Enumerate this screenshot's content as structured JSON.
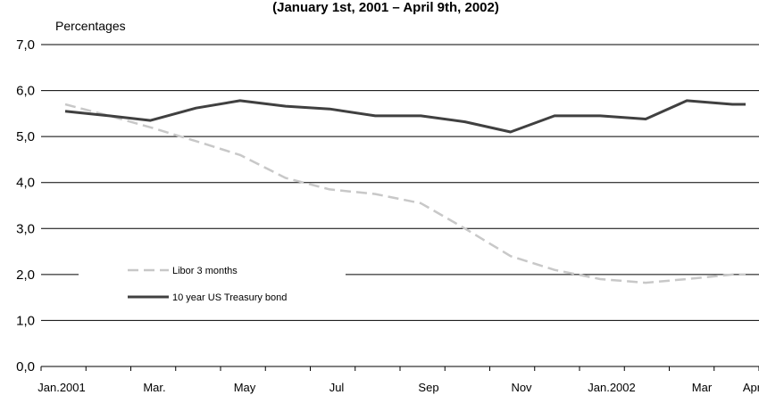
{
  "chart_data": {
    "type": "line",
    "title": "(January 1st, 2001 – April 9th, 2002)",
    "ylabel": "Percentages",
    "xlabel": "",
    "ylim": [
      0,
      7
    ],
    "yticks": [
      "0,0",
      "1,0",
      "2,0",
      "3,0",
      "4,0",
      "5,0",
      "6,0",
      "7,0"
    ],
    "x_tick_labels": [
      "Jan.2001",
      "Mar.",
      "May",
      "Jul",
      "Sep",
      "Nov",
      "Jan.2002",
      "Mar",
      "Apr"
    ],
    "grid": "horizontal",
    "legend_position": "left",
    "series": [
      {
        "name": "Libor 3 months",
        "color": "#c8c8c8",
        "style": "dashed",
        "points": [
          {
            "x": "2001-01-01",
            "y": 5.7
          },
          {
            "x": "2001-01-31",
            "y": 5.45
          },
          {
            "x": "2001-02-28",
            "y": 5.2
          },
          {
            "x": "2001-03-31",
            "y": 4.9
          },
          {
            "x": "2001-04-30",
            "y": 4.6
          },
          {
            "x": "2001-05-31",
            "y": 4.1
          },
          {
            "x": "2001-06-30",
            "y": 3.85
          },
          {
            "x": "2001-07-31",
            "y": 3.75
          },
          {
            "x": "2001-08-31",
            "y": 3.55
          },
          {
            "x": "2001-09-30",
            "y": 3.0
          },
          {
            "x": "2001-10-31",
            "y": 2.4
          },
          {
            "x": "2001-11-30",
            "y": 2.1
          },
          {
            "x": "2001-12-31",
            "y": 1.9
          },
          {
            "x": "2002-01-31",
            "y": 1.82
          },
          {
            "x": "2002-02-28",
            "y": 1.9
          },
          {
            "x": "2002-03-31",
            "y": 2.0
          },
          {
            "x": "2002-04-09",
            "y": 2.0
          }
        ]
      },
      {
        "name": "10 year US Treasury bond",
        "color": "#404040",
        "style": "solid",
        "points": [
          {
            "x": "2001-01-01",
            "y": 5.55
          },
          {
            "x": "2001-01-31",
            "y": 5.45
          },
          {
            "x": "2001-02-28",
            "y": 5.35
          },
          {
            "x": "2001-03-31",
            "y": 5.62
          },
          {
            "x": "2001-04-30",
            "y": 5.78
          },
          {
            "x": "2001-05-31",
            "y": 5.66
          },
          {
            "x": "2001-06-30",
            "y": 5.6
          },
          {
            "x": "2001-07-31",
            "y": 5.45
          },
          {
            "x": "2001-08-31",
            "y": 5.45
          },
          {
            "x": "2001-09-30",
            "y": 5.32
          },
          {
            "x": "2001-10-31",
            "y": 5.1
          },
          {
            "x": "2001-11-30",
            "y": 5.45
          },
          {
            "x": "2001-12-31",
            "y": 5.45
          },
          {
            "x": "2002-01-31",
            "y": 5.38
          },
          {
            "x": "2002-02-28",
            "y": 5.78
          },
          {
            "x": "2002-03-31",
            "y": 5.7
          },
          {
            "x": "2002-04-09",
            "y": 5.7
          }
        ]
      }
    ]
  }
}
